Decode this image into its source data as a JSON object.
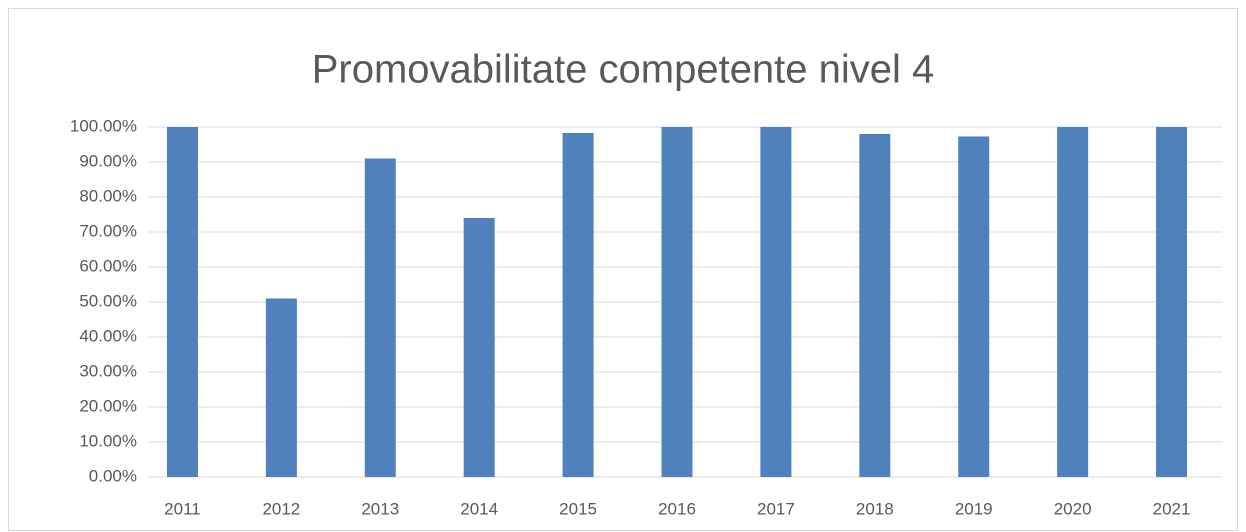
{
  "chart_data": {
    "type": "bar",
    "title": "Promovabilitate competente nivel 4",
    "categories": [
      "2011",
      "2012",
      "2013",
      "2014",
      "2015",
      "2016",
      "2017",
      "2018",
      "2019",
      "2020",
      "2021"
    ],
    "values": [
      100,
      51,
      91,
      74,
      98.3,
      100,
      100,
      98,
      97.3,
      100,
      100
    ],
    "color": "#4f81bd",
    "ylim": [
      0,
      100
    ],
    "yticks": [
      {
        "value": 0,
        "label": "0.00%"
      },
      {
        "value": 10,
        "label": "10.00%"
      },
      {
        "value": 20,
        "label": "20.00%"
      },
      {
        "value": 30,
        "label": "30.00%"
      },
      {
        "value": 40,
        "label": "40.00%"
      },
      {
        "value": 50,
        "label": "50.00%"
      },
      {
        "value": 60,
        "label": "60.00%"
      },
      {
        "value": 70,
        "label": "70.00%"
      },
      {
        "value": 80,
        "label": "80.00%"
      },
      {
        "value": 90,
        "label": "90.00%"
      },
      {
        "value": 100,
        "label": "100.00%"
      }
    ],
    "grid": true
  }
}
